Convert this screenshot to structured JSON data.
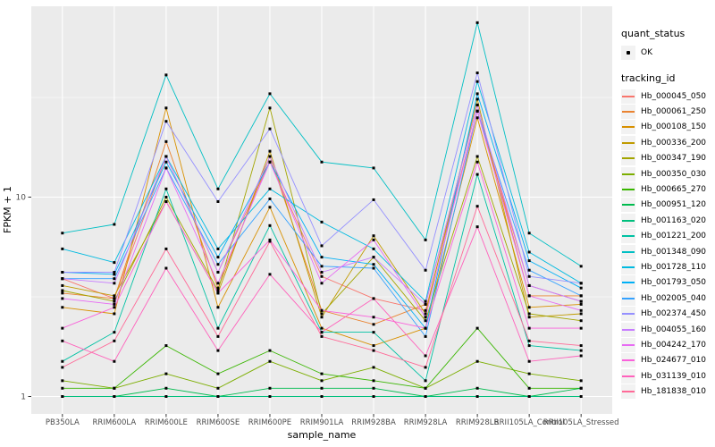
{
  "legend": {
    "quant_status_title": "quant_status",
    "ok_label": "OK",
    "tracking_id_title": "tracking_id"
  },
  "theme": {
    "panel_bg": "#EBEBEB",
    "grid_color": "#FFFFFF",
    "tick_color": "#333333",
    "tick_label_color": "#4D4D4D",
    "axis_title_color": "#000000",
    "legend_key_bg": "#F2F2F2",
    "point_color": "#000000"
  },
  "chart_data": {
    "type": "line",
    "title": "",
    "xlabel": "sample_name",
    "ylabel": "FPKM + 1",
    "y_scale": "log10",
    "y_ticks": [
      1,
      10
    ],
    "y_tick_labels": [
      "1",
      "10"
    ],
    "y_minor_ticks": [
      3.1623,
      31.623
    ],
    "ylim": [
      0.86,
      90
    ],
    "grid": true,
    "legend_position": "right",
    "point_marker": {
      "shape": "square",
      "color": "#000000",
      "size": 3
    },
    "categories": [
      "PB350LA",
      "RRIM600LA",
      "RRIM600LE",
      "RRIM600SE",
      "RRIM600PE",
      "RRIM901LA",
      "RRIM928BA",
      "RRIM928LA",
      "RRIM928LB",
      "RRII105LA_Control",
      "RRII105LA_Stressed"
    ],
    "series": [
      {
        "name": "Hb_000045_050",
        "color": "#F8766D",
        "values": [
          3.9,
          3.1,
          16,
          4.2,
          15,
          4.0,
          3.1,
          2.7,
          27,
          3.6,
          3.0
        ]
      },
      {
        "name": "Hb_000061_250",
        "color": "#EA8331",
        "values": [
          3.3,
          3.1,
          19,
          3.5,
          16,
          2.7,
          2.3,
          2.9,
          29,
          3.2,
          3.2
        ]
      },
      {
        "name": "Hb_000108_150",
        "color": "#D89000",
        "values": [
          2.8,
          2.6,
          28,
          2.8,
          8.9,
          2.2,
          1.8,
          2.2,
          25,
          2.8,
          2.9
        ]
      },
      {
        "name": "Hb_000336_200",
        "color": "#C09B00",
        "values": [
          3.6,
          3.2,
          9.5,
          3.3,
          17,
          2.5,
          6.4,
          2.6,
          31,
          2.5,
          2.6
        ]
      },
      {
        "name": "Hb_000347_190",
        "color": "#A3A500",
        "values": [
          3.4,
          3.0,
          10,
          3.4,
          28,
          2.6,
          5.0,
          2.4,
          16,
          2.6,
          2.4
        ]
      },
      {
        "name": "Hb_000350_030",
        "color": "#7CAE00",
        "values": [
          1.2,
          1.1,
          1.3,
          1.1,
          1.5,
          1.2,
          1.4,
          1.1,
          1.5,
          1.3,
          1.2
        ]
      },
      {
        "name": "Hb_000665_270",
        "color": "#39B600",
        "values": [
          1.1,
          1.1,
          1.8,
          1.3,
          1.7,
          1.3,
          1.2,
          1.1,
          2.2,
          1.1,
          1.1
        ]
      },
      {
        "name": "Hb_000951_120",
        "color": "#00BB4E",
        "values": [
          1.0,
          1.0,
          1.1,
          1.0,
          1.1,
          1.1,
          1.1,
          1.0,
          1.1,
          1.0,
          1.1
        ]
      },
      {
        "name": "Hb_001163_020",
        "color": "#00BF7D",
        "values": [
          1.0,
          1.0,
          1.0,
          1.0,
          1.0,
          1.0,
          1.0,
          1.0,
          1.0,
          1.0,
          1.0
        ]
      },
      {
        "name": "Hb_001221_200",
        "color": "#00C1A3",
        "values": [
          1.5,
          2.1,
          11,
          2.2,
          7.2,
          2.1,
          2.1,
          1.2,
          13,
          1.8,
          1.7
        ]
      },
      {
        "name": "Hb_001348_090",
        "color": "#00BFC4",
        "values": [
          6.6,
          7.3,
          41,
          11,
          33,
          15,
          14,
          6.1,
          75,
          6.6,
          4.5
        ]
      },
      {
        "name": "Hb_001728_110",
        "color": "#00BAE0",
        "values": [
          5.5,
          4.7,
          16,
          5.5,
          11,
          7.5,
          5.5,
          3.0,
          38,
          5.3,
          3.7
        ]
      },
      {
        "name": "Hb_001793_050",
        "color": "#00B0F6",
        "values": [
          4.2,
          4.1,
          15,
          5.0,
          15,
          5.0,
          4.6,
          2.2,
          33,
          4.8,
          3.5
        ]
      },
      {
        "name": "Hb_002005_040",
        "color": "#35A2FF",
        "values": [
          3.9,
          3.9,
          14,
          4.6,
          9.8,
          4.5,
          4.4,
          2.0,
          27,
          4.3,
          3.2
        ]
      },
      {
        "name": "Hb_002374_450",
        "color": "#9590FF",
        "values": [
          4.2,
          4.2,
          24,
          9.5,
          22,
          5.7,
          9.7,
          4.3,
          42,
          4.0,
          3.7
        ]
      },
      {
        "name": "Hb_004055_160",
        "color": "#C77CFF",
        "values": [
          3.9,
          3.7,
          16,
          4.2,
          16,
          4.2,
          5.0,
          2.9,
          29,
          3.6,
          3.0
        ]
      },
      {
        "name": "Hb_004242_170",
        "color": "#E76BF3",
        "values": [
          3.1,
          2.9,
          14,
          3.7,
          15,
          3.7,
          6.1,
          2.5,
          27,
          3.2,
          2.7
        ]
      },
      {
        "name": "Hb_024677_010",
        "color": "#FA62DB",
        "values": [
          2.2,
          2.8,
          9.5,
          3.3,
          6.1,
          2.7,
          2.5,
          2.2,
          15,
          2.2,
          2.2
        ]
      },
      {
        "name": "Hb_031139_010",
        "color": "#FF62BC",
        "values": [
          1.9,
          1.5,
          4.4,
          1.7,
          4.1,
          2.1,
          3.1,
          1.6,
          7.1,
          1.5,
          1.6
        ]
      },
      {
        "name": "Hb_181838_010",
        "color": "#FF6A98",
        "values": [
          1.4,
          1.9,
          5.5,
          2.0,
          6.0,
          2.0,
          1.7,
          1.4,
          9.0,
          1.9,
          1.8
        ]
      }
    ]
  }
}
